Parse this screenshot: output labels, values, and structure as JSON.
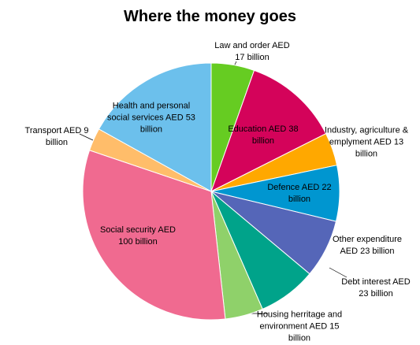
{
  "chart_data": {
    "type": "pie",
    "title": "Where the money goes",
    "categories": [
      "Law and order AED 17 billion",
      "Education AED 38 billion",
      "Industry, agriculture & emplyment AED 13 billion",
      "Defence AED 22 billion",
      "Other expenditure AED 23 billion",
      "Debt interest AED 23 billion",
      "Housing herritage and environment AED 15 billion",
      "Social security AED 100 billion",
      "Transport AED 9 billion",
      "Health and personal social services AED 53 billion"
    ],
    "values": [
      17,
      38,
      13,
      22,
      23,
      23,
      15,
      100,
      9,
      53
    ],
    "colors": [
      "#66cc22",
      "#d4035a",
      "#ffa800",
      "#0096d0",
      "#5566b8",
      "#00a38a",
      "#8fd16a",
      "#f06a90",
      "#ffbd6a",
      "#6cc0ec"
    ]
  }
}
